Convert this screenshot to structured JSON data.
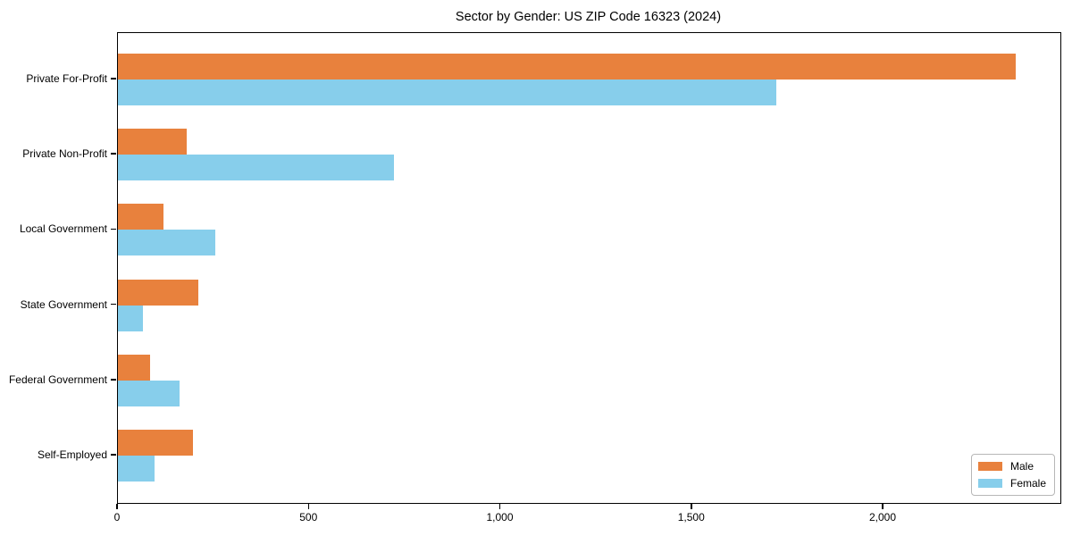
{
  "chart_data": {
    "type": "bar",
    "orientation": "horizontal",
    "title": "Sector by Gender: US ZIP Code 16323 (2024)",
    "categories": [
      "Private For-Profit",
      "Private Non-Profit",
      "Local Government",
      "State Government",
      "Federal Government",
      "Self-Employed"
    ],
    "series": [
      {
        "name": "Male",
        "color": "#E8813D",
        "values": [
          2345,
          180,
          120,
          210,
          85,
          195
        ]
      },
      {
        "name": "Female",
        "color": "#87CEEB",
        "values": [
          1720,
          720,
          255,
          65,
          160,
          95
        ]
      }
    ],
    "xlim": [
      0,
      2462
    ],
    "x_ticks": [
      0,
      500,
      1000,
      1500,
      2000
    ],
    "x_tick_labels": [
      "0",
      "500",
      "1,000",
      "1,500",
      "2,000"
    ],
    "ylabel": "",
    "xlabel": "",
    "grid": false,
    "legend": {
      "position": "lower right",
      "entries": [
        "Male",
        "Female"
      ]
    }
  },
  "colors": {
    "male": "#E8813D",
    "female": "#87CEEB",
    "spine": "#000000",
    "legend_border": "#b7b7b7",
    "background": "#ffffff"
  }
}
